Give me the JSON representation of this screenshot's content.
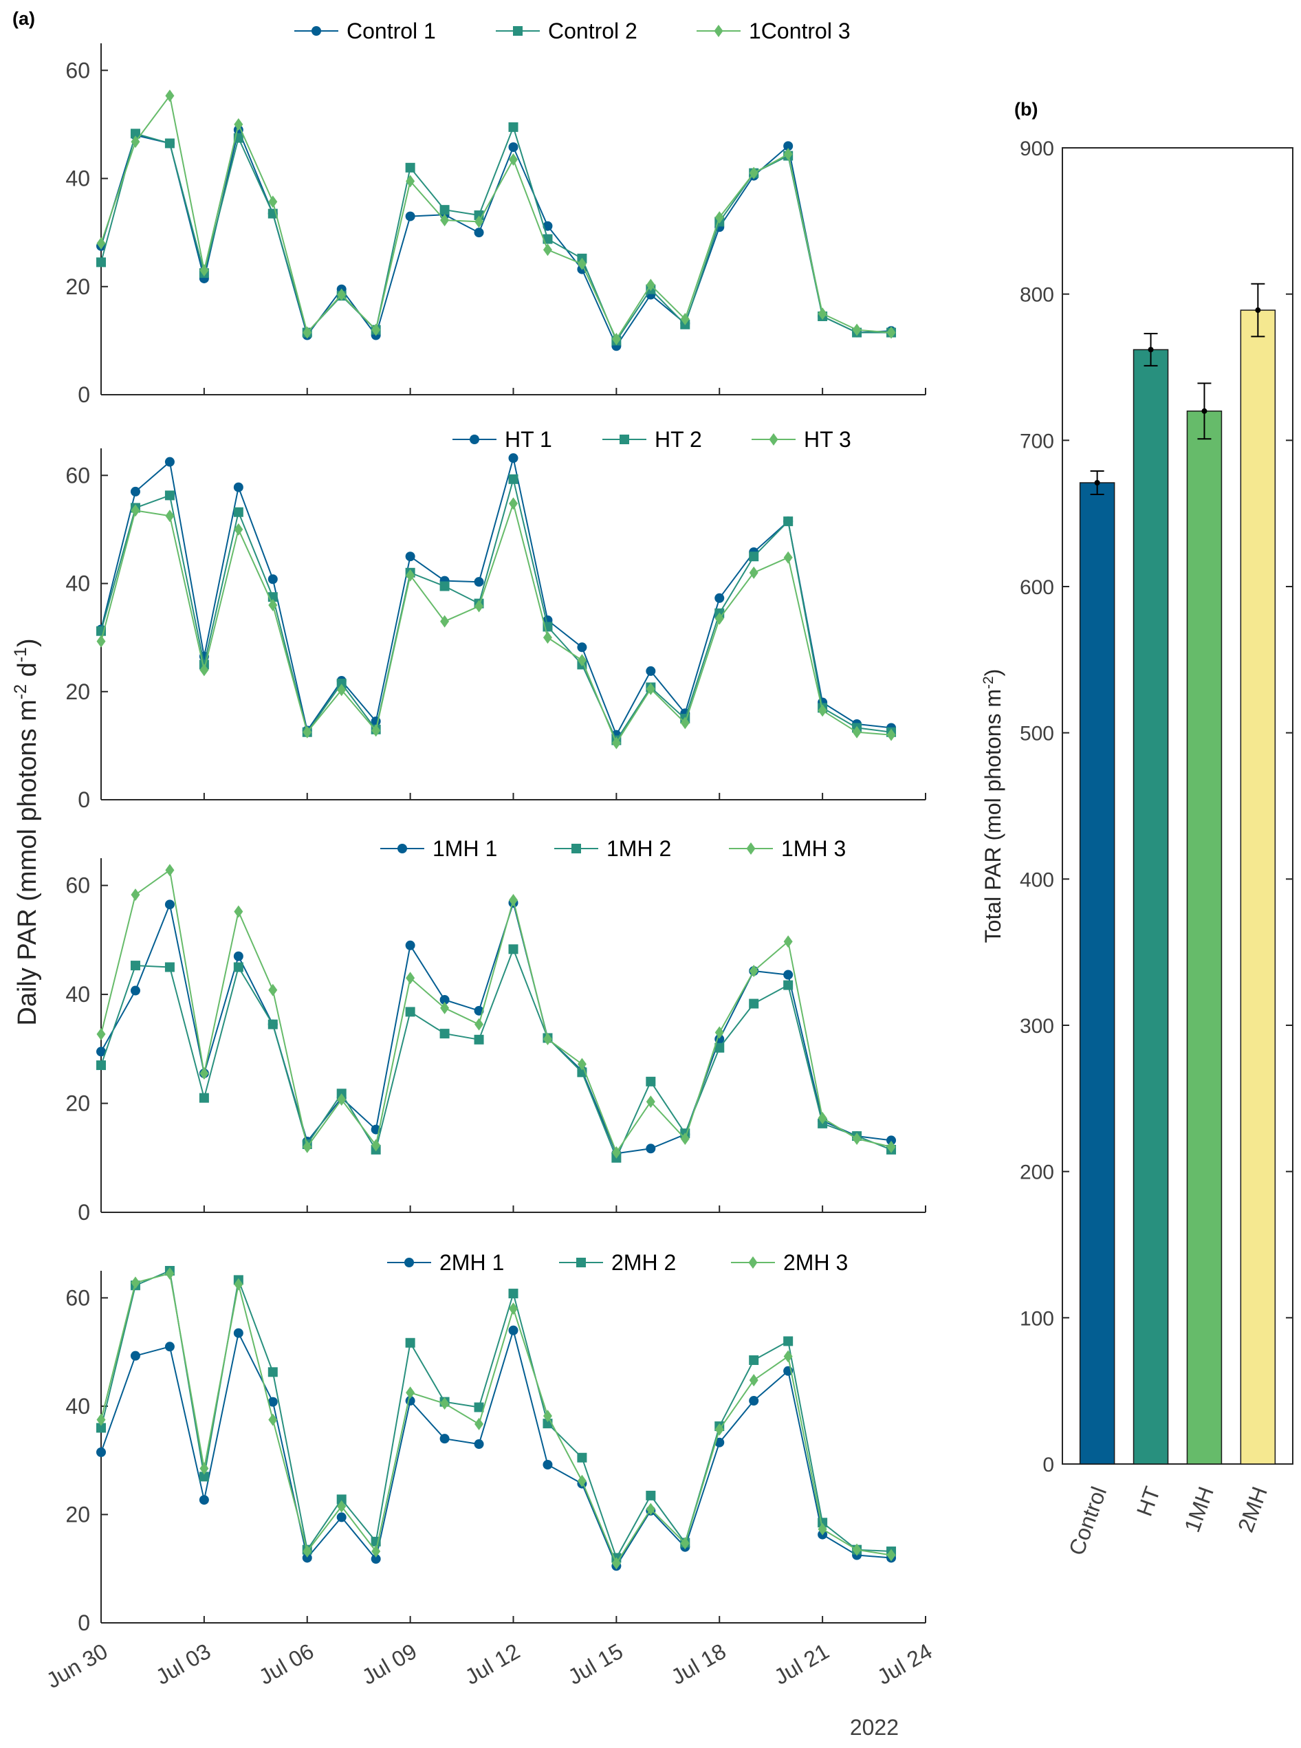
{
  "panel_a_label": "(a)",
  "panel_b_label": "(b)",
  "colors": {
    "s1": "#035E92",
    "s2": "#28907E",
    "s3": "#66BB6A"
  },
  "chart_data": [
    {
      "type": "line",
      "x": [
        "2022-06-30",
        "2022-07-01",
        "2022-07-02",
        "2022-07-03",
        "2022-07-04",
        "2022-07-05",
        "2022-07-06",
        "2022-07-07",
        "2022-07-08",
        "2022-07-09",
        "2022-07-10",
        "2022-07-11",
        "2022-07-12",
        "2022-07-13",
        "2022-07-14",
        "2022-07-15",
        "2022-07-16",
        "2022-07-17",
        "2022-07-18",
        "2022-07-19",
        "2022-07-20",
        "2022-07-21",
        "2022-07-22",
        "2022-07-23"
      ],
      "xticks": [
        "Jun 30",
        "Jul 03",
        "Jul 06",
        "Jul 09",
        "Jul 12",
        "Jul 15",
        "Jul 18",
        "Jul 21",
        "Jul 24"
      ],
      "xtick_index": [
        0,
        3,
        6,
        9,
        12,
        15,
        18,
        21,
        24
      ],
      "year_label": "2022",
      "ylabel": "Daily PAR (mmol photons m-2 d-1)",
      "ylim": [
        0,
        65
      ],
      "yticks": [
        0,
        20,
        40,
        60
      ],
      "legend_position": "top",
      "panels": [
        {
          "series": [
            {
              "name": "Control 1",
              "marker": "circle",
              "values": [
                27.5,
                48,
                46.5,
                21.5,
                49,
                33.5,
                11,
                19.5,
                11,
                33,
                33.3,
                30,
                45.8,
                31.2,
                23.2,
                9,
                18.5,
                13.2,
                31,
                40.5,
                46,
                14.5,
                11.5,
                11.8
              ]
            },
            {
              "name": "Control 2",
              "marker": "square",
              "values": [
                24.5,
                48.3,
                46.5,
                22.5,
                47.5,
                33.5,
                11.5,
                18.3,
                12,
                42,
                34.2,
                33.2,
                49.5,
                28.8,
                25.2,
                10,
                19.5,
                13,
                32,
                41,
                44.2,
                14.5,
                11.5,
                11.5
              ]
            },
            {
              "name": "1Control 3",
              "marker": "diamond",
              "values": [
                28,
                46.8,
                55.3,
                23,
                50,
                35.7,
                11.5,
                18.5,
                12,
                39.5,
                32.3,
                32,
                43.5,
                26.8,
                24.2,
                10.3,
                20.3,
                14,
                32.8,
                41,
                44.5,
                15,
                12,
                11.5
              ]
            }
          ]
        },
        {
          "series": [
            {
              "name": "HT 1",
              "marker": "circle",
              "values": [
                31.5,
                57,
                62.5,
                26.5,
                57.8,
                40.8,
                12.8,
                22,
                14.5,
                45,
                40.5,
                40.3,
                63.2,
                33.2,
                28.2,
                12,
                23.8,
                16,
                37.3,
                45.8,
                51.5,
                18,
                14,
                13.3
              ]
            },
            {
              "name": "HT 2",
              "marker": "square",
              "values": [
                31.2,
                54,
                56.3,
                25,
                53.2,
                37.5,
                12.5,
                21.5,
                13,
                42,
                39.5,
                36.3,
                59.3,
                32,
                25,
                11,
                20.8,
                15,
                34.5,
                45,
                51.5,
                17,
                13.3,
                12.5
              ]
            },
            {
              "name": "HT 3",
              "marker": "diamond",
              "values": [
                29.3,
                53.5,
                52.5,
                24,
                50,
                36,
                12.5,
                20.3,
                12.8,
                41.5,
                33,
                35.8,
                54.8,
                30,
                25.8,
                10.5,
                20.5,
                14.2,
                33.5,
                42,
                44.8,
                16.5,
                12.5,
                12
              ]
            }
          ]
        },
        {
          "series": [
            {
              "name": "1MH 1",
              "marker": "circle",
              "values": [
                29.5,
                40.7,
                56.5,
                25.5,
                47,
                34.5,
                13,
                21,
                15.2,
                49,
                39,
                37,
                56.8,
                32,
                26,
                10.8,
                11.7,
                14.3,
                31.8,
                44.3,
                43.6,
                16.8,
                14,
                13.2
              ]
            },
            {
              "name": "1MH 2",
              "marker": "square",
              "values": [
                27,
                45.3,
                45,
                21,
                45,
                34.5,
                12.5,
                21.8,
                11.5,
                36.8,
                32.8,
                31.7,
                48.3,
                32,
                25.7,
                10,
                24,
                14.5,
                30.2,
                38.3,
                41.7,
                16.3,
                14,
                11.5
              ]
            },
            {
              "name": "1MH 3",
              "marker": "diamond",
              "values": [
                32.7,
                58.3,
                62.8,
                25.5,
                55.2,
                40.8,
                12,
                20.7,
                12.3,
                43,
                37.5,
                34.5,
                57.3,
                31.8,
                27.2,
                11,
                20.3,
                13.5,
                33,
                44.3,
                49.7,
                17.3,
                13.5,
                12
              ]
            }
          ]
        },
        {
          "series": [
            {
              "name": "2MH 1",
              "marker": "circle",
              "values": [
                31.5,
                49.3,
                51,
                22.7,
                53.5,
                40.8,
                12,
                19.5,
                11.8,
                41,
                34,
                33,
                54,
                29.2,
                25.7,
                10.5,
                20.7,
                14,
                33.3,
                41,
                46.5,
                16.3,
                12.5,
                12
              ]
            },
            {
              "name": "2MH 2",
              "marker": "square",
              "values": [
                36,
                62.3,
                65,
                27,
                63.3,
                46.3,
                13.5,
                22.8,
                15,
                51.7,
                40.8,
                39.8,
                60.8,
                36.8,
                30.5,
                12,
                23.5,
                14.8,
                36.3,
                48.5,
                52,
                18.5,
                13.5,
                13.2
              ]
            },
            {
              "name": "2MH 3",
              "marker": "diamond",
              "values": [
                37.5,
                62.8,
                64.5,
                28.5,
                62.5,
                37.5,
                13.2,
                21.5,
                13.2,
                42.5,
                40.5,
                36.7,
                58,
                38.2,
                26.2,
                11,
                21,
                14.7,
                35.7,
                44.8,
                49.2,
                17.3,
                13.5,
                12.5
              ]
            }
          ]
        }
      ]
    },
    {
      "type": "bar",
      "categories": [
        "Control",
        "HT",
        "1MH",
        "2MH"
      ],
      "values": [
        671,
        762,
        720,
        789
      ],
      "errors": [
        8,
        11,
        19,
        18
      ],
      "bar_colors": [
        "#035E92",
        "#28907E",
        "#66BB6A",
        "#F5E890"
      ],
      "ylabel": "Total PAR (mol photons m-2)",
      "ylim": [
        0,
        900
      ],
      "yticks": [
        0,
        100,
        200,
        300,
        400,
        500,
        600,
        700,
        800,
        900
      ]
    }
  ]
}
